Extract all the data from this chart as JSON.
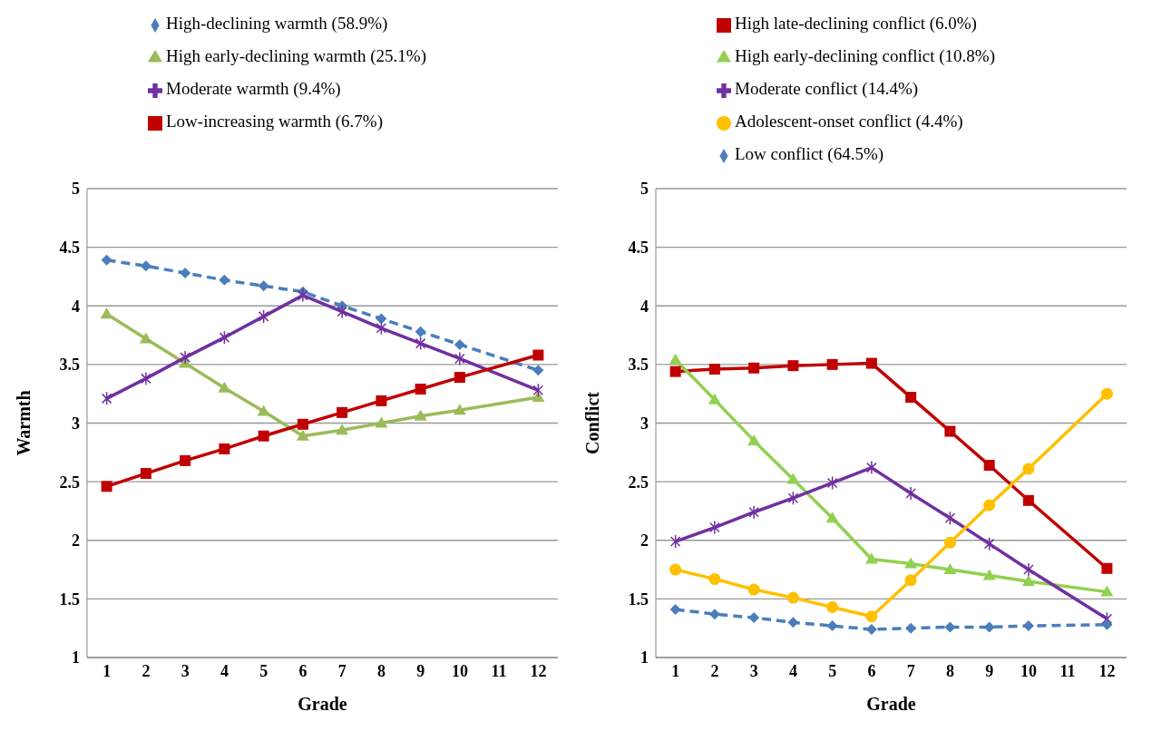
{
  "chart_data": [
    {
      "type": "line",
      "xlabel": "Grade",
      "ylabel": "Warmth",
      "x": [
        1,
        2,
        3,
        4,
        5,
        6,
        7,
        8,
        9,
        10,
        12
      ],
      "xlim": [
        0.5,
        12.5
      ],
      "xticks": [
        1,
        2,
        3,
        4,
        5,
        6,
        7,
        8,
        9,
        10,
        11,
        12
      ],
      "ylim": [
        1,
        5
      ],
      "yticks": [
        1,
        1.5,
        2,
        2.5,
        3,
        3.5,
        4,
        4.5,
        5
      ],
      "grid": "y",
      "legend": "top",
      "series": [
        {
          "name": "High-declining warmth (58.9%)",
          "color": "#4a7ebb",
          "marker": "diamond",
          "line_style": "dashed",
          "values": [
            4.39,
            4.34,
            4.28,
            4.22,
            4.17,
            4.12,
            4.0,
            3.89,
            3.78,
            3.67,
            3.45
          ]
        },
        {
          "name": "High early-declining warmth (25.1%)",
          "color": "#9bbb59",
          "marker": "triangle",
          "line_style": "solid",
          "values": [
            3.93,
            3.72,
            3.51,
            3.3,
            3.1,
            2.89,
            2.94,
            3.0,
            3.06,
            3.11,
            3.22
          ]
        },
        {
          "name": "Moderate warmth (9.4%)",
          "color": "#7030a0",
          "marker": "cross",
          "line_style": "solid",
          "values": [
            3.21,
            3.38,
            3.56,
            3.73,
            3.91,
            4.09,
            3.95,
            3.81,
            3.68,
            3.55,
            3.28
          ]
        },
        {
          "name": "Low-increasing warmth (6.7%)",
          "color": "#c00000",
          "marker": "square",
          "line_style": "solid",
          "values": [
            2.46,
            2.57,
            2.68,
            2.78,
            2.89,
            2.99,
            3.09,
            3.19,
            3.29,
            3.39,
            3.58
          ]
        }
      ]
    },
    {
      "type": "line",
      "xlabel": "Grade",
      "ylabel": "Conflict",
      "x": [
        1,
        2,
        3,
        4,
        5,
        6,
        7,
        8,
        9,
        10,
        12
      ],
      "xlim": [
        0.5,
        12.5
      ],
      "xticks": [
        1,
        2,
        3,
        4,
        5,
        6,
        7,
        8,
        9,
        10,
        11,
        12
      ],
      "ylim": [
        1,
        5
      ],
      "yticks": [
        1,
        1.5,
        2,
        2.5,
        3,
        3.5,
        4,
        4.5,
        5
      ],
      "grid": "y",
      "legend": "top",
      "series": [
        {
          "name": "High late-declining conflict (6.0%)",
          "color": "#c00000",
          "marker": "square",
          "line_style": "solid",
          "values": [
            3.44,
            3.46,
            3.47,
            3.49,
            3.5,
            3.51,
            3.22,
            2.93,
            2.64,
            2.34,
            1.76
          ]
        },
        {
          "name": "High early-declining conflict (10.8%)",
          "color": "#92d050",
          "marker": "triangle",
          "line_style": "solid",
          "values": [
            3.54,
            3.2,
            2.85,
            2.52,
            2.19,
            1.84,
            1.8,
            1.75,
            1.7,
            1.65,
            1.56
          ]
        },
        {
          "name": "Moderate conflict (14.4%)",
          "color": "#7030a0",
          "marker": "cross",
          "line_style": "solid",
          "values": [
            1.99,
            2.11,
            2.24,
            2.36,
            2.49,
            2.62,
            2.4,
            2.19,
            1.97,
            1.75,
            1.33
          ]
        },
        {
          "name": "Adolescent-onset conflict (4.4%)",
          "color": "#ffc000",
          "marker": "circle",
          "line_style": "solid",
          "values": [
            1.75,
            1.67,
            1.58,
            1.51,
            1.43,
            1.35,
            1.66,
            1.98,
            2.3,
            2.61,
            3.25
          ]
        },
        {
          "name": "Low conflict (64.5%)",
          "color": "#4a7ebb",
          "marker": "diamond",
          "line_style": "dashed",
          "values": [
            1.41,
            1.37,
            1.34,
            1.3,
            1.27,
            1.24,
            1.25,
            1.26,
            1.26,
            1.27,
            1.28
          ]
        }
      ]
    }
  ]
}
